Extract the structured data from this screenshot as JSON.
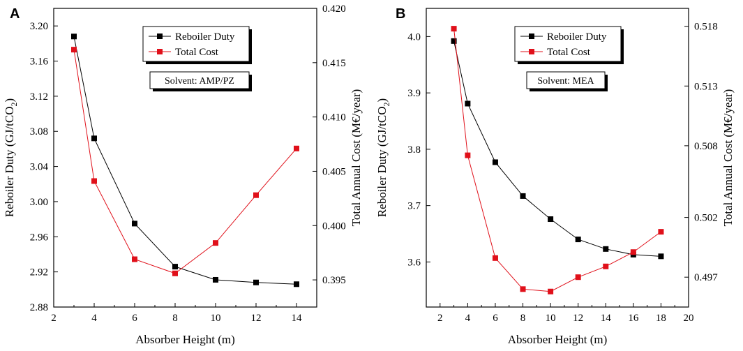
{
  "chart_data": [
    {
      "type": "line",
      "panel_label": "A",
      "xlabel": "Absorber Height (m)",
      "ylabel_left": "Reboiler Duty (GJ/tCO",
      "ylabel_left_sub": "2",
      "ylabel_left_end": ")",
      "ylabel_right": "Total Annual Cost (M€/year)",
      "solvent_label": "Solvent: AMP/PZ",
      "xlim": [
        2,
        15
      ],
      "xticks": [
        2,
        4,
        6,
        8,
        10,
        12,
        14
      ],
      "ylim_left": [
        2.88,
        3.22
      ],
      "yticks_left": [
        "2.88",
        "2.92",
        "2.96",
        "3.00",
        "3.04",
        "3.08",
        "3.12",
        "3.16",
        "3.20"
      ],
      "ylim_right": [
        0.3925,
        0.42
      ],
      "yticks_right": [
        "0.395",
        "0.400",
        "0.405",
        "0.410",
        "0.415",
        "0.420"
      ],
      "legend_position": "top-center",
      "series": [
        {
          "name": "Reboiler Duty",
          "color": "#000000",
          "axis": "left",
          "x": [
            3,
            4,
            6,
            8,
            10,
            12,
            14
          ],
          "values": [
            3.188,
            3.072,
            2.975,
            2.926,
            2.911,
            2.908,
            2.906
          ]
        },
        {
          "name": "Total Cost",
          "color": "#e0101a",
          "axis": "right",
          "x": [
            3,
            4,
            6,
            8,
            10,
            12,
            14
          ],
          "values": [
            0.4162,
            0.4041,
            0.3969,
            0.3956,
            0.3984,
            0.4028,
            0.4071
          ]
        }
      ]
    },
    {
      "type": "line",
      "panel_label": "B",
      "xlabel": "Absorber Height (m)",
      "ylabel_left": "Reboiler Duty (GJ/tCO",
      "ylabel_left_sub": "2",
      "ylabel_left_end": ")",
      "ylabel_right": "Total Annual Cost (M€/year)",
      "solvent_label": "Solvent: MEA",
      "xlim": [
        1,
        20
      ],
      "xticks": [
        2,
        4,
        6,
        8,
        10,
        12,
        14,
        16,
        18,
        20
      ],
      "ylim_left": [
        3.52,
        4.05
      ],
      "yticks_left": [
        "3.6",
        "3.7",
        "3.8",
        "3.9",
        "4.0"
      ],
      "ylim_right": [
        0.4945,
        0.5195
      ],
      "yticks_right": [
        "0.497",
        "0.502",
        "0.508",
        "0.513",
        "0.518"
      ],
      "legend_position": "top-center",
      "series": [
        {
          "name": "Reboiler Duty",
          "color": "#000000",
          "axis": "left",
          "x": [
            3,
            4,
            6,
            8,
            10,
            12,
            14,
            16,
            18
          ],
          "values": [
            3.992,
            3.881,
            3.777,
            3.717,
            3.676,
            3.64,
            3.623,
            3.613,
            3.61
          ]
        },
        {
          "name": "Total Cost",
          "color": "#e0101a",
          "axis": "right",
          "x": [
            3,
            4,
            6,
            8,
            10,
            12,
            14,
            16,
            18
          ],
          "values": [
            0.5178,
            0.5072,
            0.4986,
            0.496,
            0.4958,
            0.497,
            0.4979,
            0.4991,
            0.5008
          ]
        }
      ]
    }
  ]
}
